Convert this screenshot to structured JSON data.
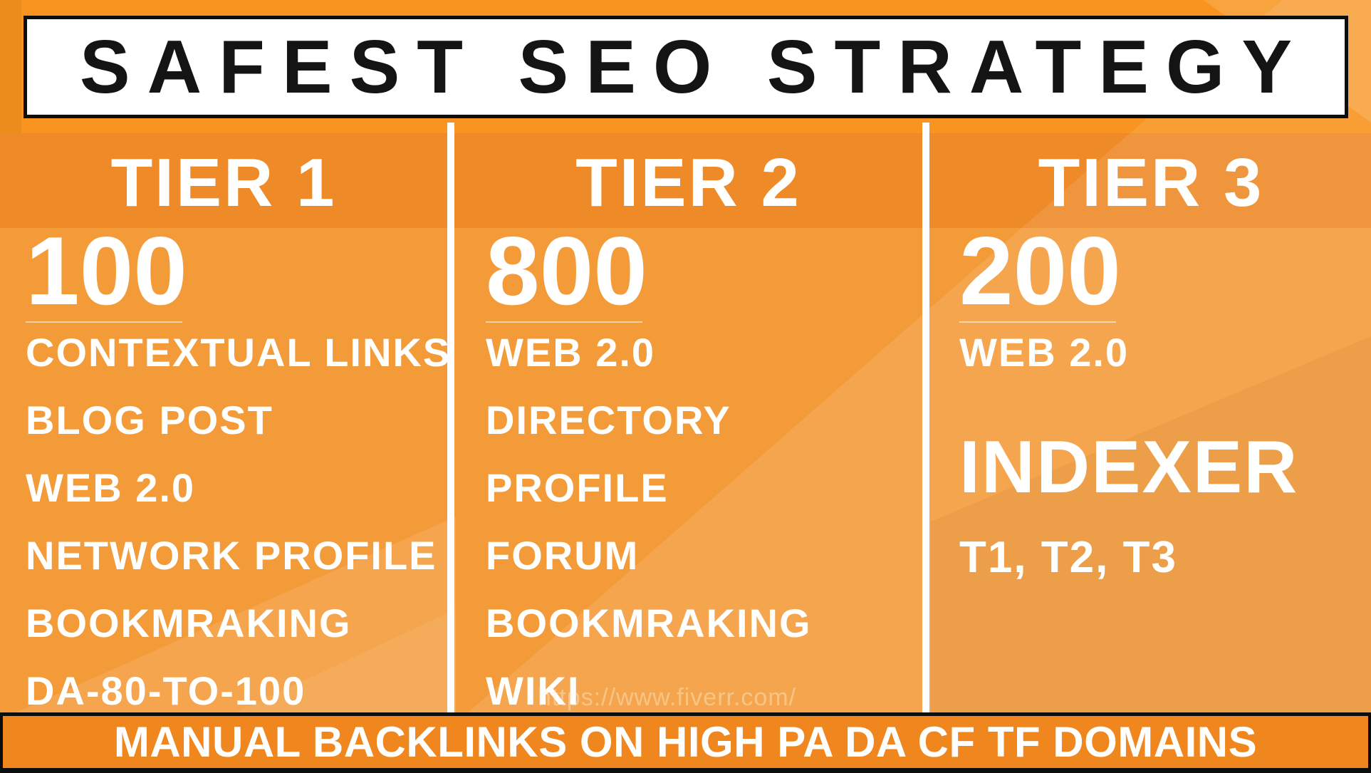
{
  "header": {
    "title": "SAFEST SEO STRATEGY"
  },
  "tiers": [
    {
      "name": "TIER 1",
      "count": "100",
      "items": [
        "CONTEXTUAL LINKS",
        "BLOG POST",
        "WEB 2.0",
        "NETWORK PROFILE",
        "BOOKMRAKING",
        "DA-80-TO-100"
      ]
    },
    {
      "name": "TIER 2",
      "count": "800",
      "items": [
        "WEB 2.0",
        "DIRECTORY",
        "PROFILE",
        "FORUM",
        "BOOKMRAKING",
        "WIKI"
      ]
    },
    {
      "name": "TIER 3",
      "count": "200",
      "items": [
        "WEB 2.0"
      ],
      "highlight": "INDEXER",
      "subtext": "T1, T2, T3"
    }
  ],
  "footer": {
    "text": "MANUAL BACKLINKS ON HIGH PA DA CF TF DOMAINS"
  },
  "watermark": "https://www.fiverr.com/",
  "colors": {
    "band_top": "#F8941F",
    "band_tier": "#EE8A28",
    "content": "#F39B39",
    "footer_bar": "#EF861E",
    "title_text": "#141414",
    "text": "#FFFFFF"
  }
}
